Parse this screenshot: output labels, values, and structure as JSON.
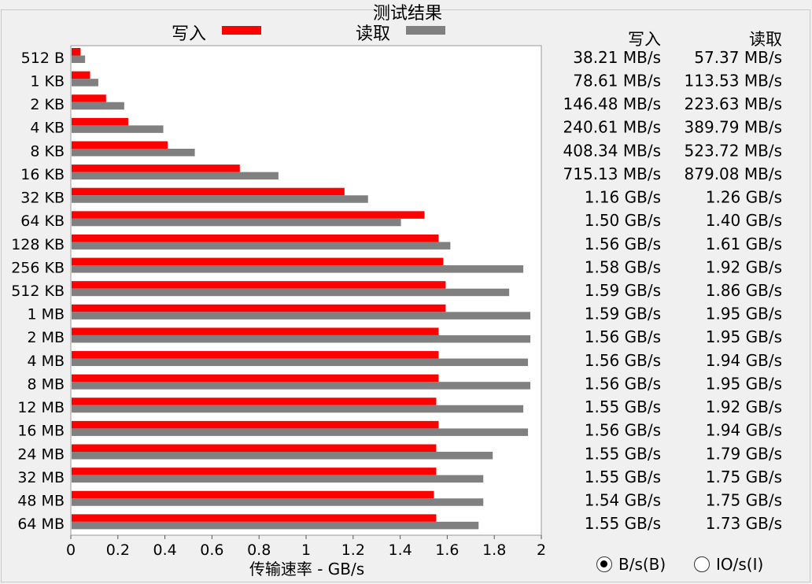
{
  "chart_data": {
    "type": "bar",
    "title": "测试结果",
    "xlabel": "传输速率 - GB/s",
    "xlim": [
      0,
      2
    ],
    "xticks": [
      "0",
      "0.2",
      "0.4",
      "0.6",
      "0.8",
      "1",
      "1.2",
      "1.4",
      "1.6",
      "1.8",
      "2"
    ],
    "categories": [
      "512 B",
      "1 KB",
      "2 KB",
      "4 KB",
      "8 KB",
      "16 KB",
      "32 KB",
      "64 KB",
      "128 KB",
      "256 KB",
      "512 KB",
      "1 MB",
      "2 MB",
      "4 MB",
      "8 MB",
      "12 MB",
      "16 MB",
      "24 MB",
      "32 MB",
      "48 MB",
      "64 MB"
    ],
    "series": [
      {
        "name": "写入",
        "color": "#ff0000",
        "values": [
          0.03821,
          0.07861,
          0.14648,
          0.24061,
          0.40834,
          0.71513,
          1.16,
          1.5,
          1.56,
          1.58,
          1.59,
          1.59,
          1.56,
          1.56,
          1.56,
          1.55,
          1.56,
          1.55,
          1.55,
          1.54,
          1.55
        ]
      },
      {
        "name": "读取",
        "color": "#808080",
        "values": [
          0.05737,
          0.11353,
          0.22363,
          0.38979,
          0.52372,
          0.87908,
          1.26,
          1.4,
          1.61,
          1.92,
          1.86,
          1.95,
          1.95,
          1.94,
          1.95,
          1.92,
          1.94,
          1.79,
          1.75,
          1.75,
          1.73
        ]
      }
    ],
    "grid": false,
    "legend_position": "top"
  },
  "results": {
    "write_header": "写入",
    "read_header": "读取",
    "write": [
      "38.21 MB/s",
      "78.61 MB/s",
      "146.48 MB/s",
      "240.61 MB/s",
      "408.34 MB/s",
      "715.13 MB/s",
      "1.16 GB/s",
      "1.50 GB/s",
      "1.56 GB/s",
      "1.58 GB/s",
      "1.59 GB/s",
      "1.59 GB/s",
      "1.56 GB/s",
      "1.56 GB/s",
      "1.56 GB/s",
      "1.55 GB/s",
      "1.56 GB/s",
      "1.55 GB/s",
      "1.55 GB/s",
      "1.54 GB/s",
      "1.55 GB/s"
    ],
    "read": [
      "57.37 MB/s",
      "113.53 MB/s",
      "223.63 MB/s",
      "389.79 MB/s",
      "523.72 MB/s",
      "879.08 MB/s",
      "1.26 GB/s",
      "1.40 GB/s",
      "1.61 GB/s",
      "1.92 GB/s",
      "1.86 GB/s",
      "1.95 GB/s",
      "1.95 GB/s",
      "1.94 GB/s",
      "1.95 GB/s",
      "1.92 GB/s",
      "1.94 GB/s",
      "1.79 GB/s",
      "1.75 GB/s",
      "1.75 GB/s",
      "1.73 GB/s"
    ]
  },
  "units": {
    "bytes_label": "B/s(B)",
    "io_label": "IO/s(I)",
    "selected": "bytes"
  }
}
